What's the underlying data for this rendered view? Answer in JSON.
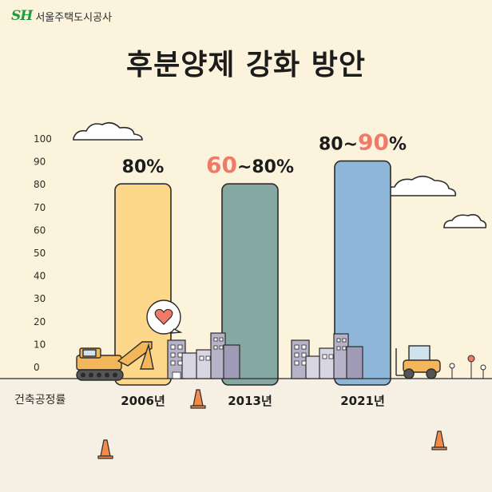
{
  "brand": {
    "logo_text": "SH",
    "org_name": "서울주택도시공사",
    "logo_color": "#1f9a3f"
  },
  "title": "후분양제 강화 방안",
  "chart_data": {
    "type": "bar",
    "title": "후분양제 강화 방안",
    "xlabel": "건축공정률",
    "ylabel": "",
    "ylim": [
      0,
      100
    ],
    "yticks": [
      0,
      10,
      20,
      30,
      40,
      50,
      60,
      70,
      80,
      90,
      100
    ],
    "grid": false,
    "categories": [
      "2006년",
      "2013년",
      "2021년"
    ],
    "values": [
      80,
      80,
      90
    ],
    "ranges": [
      [
        80,
        80
      ],
      [
        60,
        80
      ],
      [
        80,
        90
      ]
    ],
    "bar_labels": [
      {
        "parts": [
          {
            "text": "80%",
            "color": "#1c1c1c"
          }
        ]
      },
      {
        "parts": [
          {
            "text": "60",
            "color": "#f07a68"
          },
          {
            "text": "~80%",
            "color": "#1c1c1c"
          }
        ]
      },
      {
        "parts": [
          {
            "text": "80~",
            "color": "#1c1c1c"
          },
          {
            "text": "90",
            "color": "#f07a68"
          },
          {
            "text": "%",
            "color": "#1c1c1c"
          }
        ]
      }
    ],
    "colors": [
      "#fdd88a",
      "#86a8a2",
      "#8eb6d8"
    ],
    "highlight_color": "#f07a68"
  },
  "icons": {
    "clouds": "cloud-icon",
    "heart": "heart-speech-bubble-icon",
    "excavator": "excavator-icon",
    "forklift": "forklift-icon",
    "cones": "traffic-cone-icon",
    "buildings": "building-icon",
    "flowers": "flower-icon"
  }
}
